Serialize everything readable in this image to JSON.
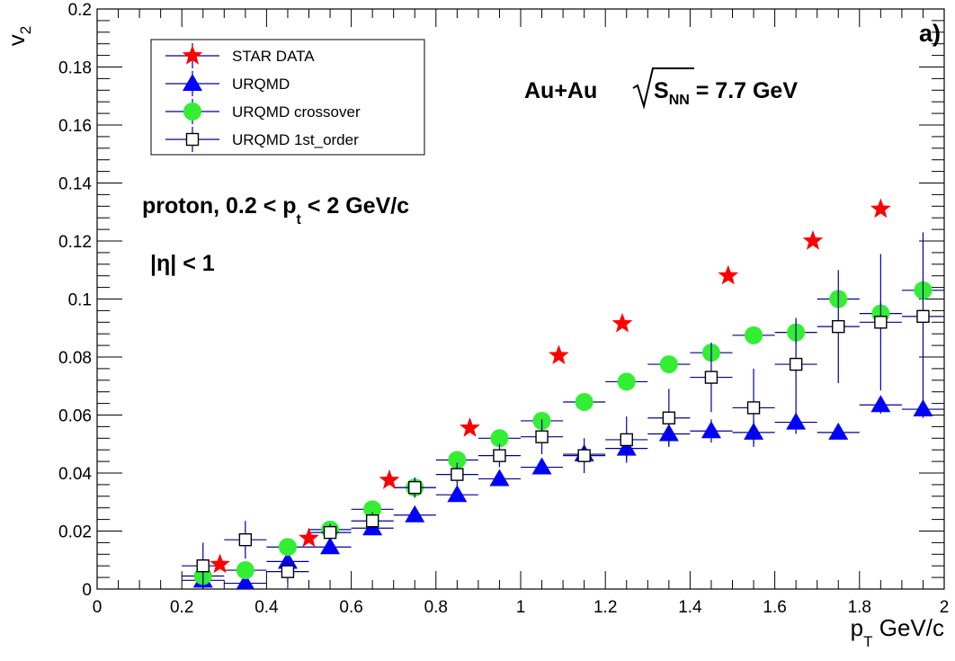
{
  "chart_data": {
    "type": "scatter",
    "title": "",
    "panel_label": "a)",
    "xlabel": {
      "main": "p",
      "sub": "T",
      "unit": " GeV/c"
    },
    "ylabel": {
      "main": "v",
      "sub": "2"
    },
    "xlim": [
      0,
      2
    ],
    "ylim": [
      0,
      0.2
    ],
    "x_ticks": [
      0,
      0.2,
      0.4,
      0.6,
      0.8,
      1,
      1.2,
      1.4,
      1.6,
      1.8,
      2
    ],
    "x_tick_labels": [
      "0",
      "0.2",
      "0.4",
      "0.6",
      "0.8",
      "1",
      "1.2",
      "1.4",
      "1.6",
      "1.8",
      "2"
    ],
    "y_ticks": [
      0,
      0.02,
      0.04,
      0.06,
      0.08,
      0.1,
      0.12,
      0.14,
      0.16,
      0.18,
      0.2
    ],
    "y_tick_labels": [
      "0",
      "0.02",
      "0.04",
      "0.06",
      "0.08",
      "0.1",
      "0.12",
      "0.14",
      "0.16",
      "0.18",
      "0.2"
    ],
    "grid": false,
    "legend_position": "top-left",
    "annotations": {
      "system": {
        "text": "Au+Au ",
        "root_label": "S",
        "root_sub": "NN",
        "suffix": " = 7.7 GeV"
      },
      "particle": {
        "pre": "proton, 0.2 < p",
        "sub": "t",
        "post": " < 2 GeV/c"
      },
      "eta": "|η| < 1"
    },
    "series": [
      {
        "name": "STAR DATA",
        "marker": "star",
        "color": "#ff0000",
        "points": [
          {
            "x": 0.29,
            "y": 0.0085
          },
          {
            "x": 0.5,
            "y": 0.0175
          },
          {
            "x": 0.69,
            "y": 0.0375
          },
          {
            "x": 0.88,
            "y": 0.0555
          },
          {
            "x": 1.09,
            "y": 0.0805
          },
          {
            "x": 1.24,
            "y": 0.0915
          },
          {
            "x": 1.49,
            "y": 0.108
          },
          {
            "x": 1.69,
            "y": 0.12
          },
          {
            "x": 1.85,
            "y": 0.131
          }
        ]
      },
      {
        "name": "URQMD",
        "marker": "triangle",
        "color": "#0000ff",
        "points": [
          {
            "x": 0.25,
            "y": 0.003,
            "xerr": 0.05,
            "yerr": 0.003
          },
          {
            "x": 0.35,
            "y": 0.002,
            "xerr": 0.05,
            "yerr": 0.003
          },
          {
            "x": 0.45,
            "y": 0.0095,
            "xerr": 0.05,
            "yerr": 0.003
          },
          {
            "x": 0.55,
            "y": 0.0145,
            "xerr": 0.05,
            "yerr": 0.002
          },
          {
            "x": 0.65,
            "y": 0.021,
            "xerr": 0.05,
            "yerr": 0.002
          },
          {
            "x": 0.75,
            "y": 0.0255,
            "xerr": 0.05,
            "yerr": 0.002
          },
          {
            "x": 0.85,
            "y": 0.0325,
            "xerr": 0.05,
            "yerr": 0.002
          },
          {
            "x": 0.95,
            "y": 0.038,
            "xerr": 0.05,
            "yerr": 0.002
          },
          {
            "x": 1.05,
            "y": 0.042,
            "xerr": 0.05,
            "yerr": 0.002
          },
          {
            "x": 1.15,
            "y": 0.0465,
            "xerr": 0.05,
            "yerr": 0.003
          },
          {
            "x": 1.25,
            "y": 0.0485,
            "xerr": 0.05,
            "yerr": 0.004
          },
          {
            "x": 1.35,
            "y": 0.0535,
            "xerr": 0.05,
            "yerr": 0.004
          },
          {
            "x": 1.45,
            "y": 0.0545,
            "xerr": 0.05,
            "yerr": 0.004
          },
          {
            "x": 1.55,
            "y": 0.054,
            "xerr": 0.05,
            "yerr": 0.004
          },
          {
            "x": 1.65,
            "y": 0.0575,
            "xerr": 0.05,
            "yerr": 0.004
          },
          {
            "x": 1.75,
            "y": 0.054,
            "xerr": 0.05,
            "yerr": 0.002
          },
          {
            "x": 1.85,
            "y": 0.0635,
            "xerr": 0.05,
            "yerr": 0.003
          },
          {
            "x": 1.95,
            "y": 0.062,
            "xerr": 0.05,
            "yerr": 0.003
          }
        ]
      },
      {
        "name": "URQMD crossover",
        "marker": "circle",
        "color": "#33ee33",
        "points": [
          {
            "x": 0.25,
            "y": 0.0045,
            "xerr": 0.05,
            "yerr": 0.003
          },
          {
            "x": 0.35,
            "y": 0.0065,
            "xerr": 0.05,
            "yerr": 0.003
          },
          {
            "x": 0.45,
            "y": 0.0145,
            "xerr": 0.05,
            "yerr": 0.002
          },
          {
            "x": 0.55,
            "y": 0.0205,
            "xerr": 0.05,
            "yerr": 0.002
          },
          {
            "x": 0.65,
            "y": 0.0275,
            "xerr": 0.05,
            "yerr": 0.002
          },
          {
            "x": 0.75,
            "y": 0.035,
            "xerr": 0.05,
            "yerr": 0.002
          },
          {
            "x": 0.85,
            "y": 0.0445,
            "xerr": 0.05,
            "yerr": 0.002
          },
          {
            "x": 0.95,
            "y": 0.052,
            "xerr": 0.05,
            "yerr": 0.002
          },
          {
            "x": 1.05,
            "y": 0.058,
            "xerr": 0.05,
            "yerr": 0.002
          },
          {
            "x": 1.15,
            "y": 0.0645,
            "xerr": 0.05,
            "yerr": 0.002
          },
          {
            "x": 1.25,
            "y": 0.0715,
            "xerr": 0.05,
            "yerr": 0.002
          },
          {
            "x": 1.35,
            "y": 0.0775,
            "xerr": 0.05,
            "yerr": 0.002
          },
          {
            "x": 1.45,
            "y": 0.0815,
            "xerr": 0.05,
            "yerr": 0.003
          },
          {
            "x": 1.55,
            "y": 0.0875,
            "xerr": 0.05,
            "yerr": 0.002
          },
          {
            "x": 1.65,
            "y": 0.0885,
            "xerr": 0.05,
            "yerr": 0.004
          },
          {
            "x": 1.75,
            "y": 0.1,
            "xerr": 0.05,
            "yerr": 0.003
          },
          {
            "x": 1.85,
            "y": 0.095,
            "xerr": 0.05,
            "yerr": 0.004
          },
          {
            "x": 1.95,
            "y": 0.103,
            "xerr": 0.05,
            "yerr": 0.004
          }
        ]
      },
      {
        "name": "URQMD 1st_order",
        "marker": "open-square",
        "color": "#000000",
        "error_color": "#000099",
        "points": [
          {
            "x": 0.25,
            "y": 0.008,
            "xerr": 0.05,
            "yerr": 0.008
          },
          {
            "x": 0.35,
            "y": 0.017,
            "xerr": 0.05,
            "yerr": 0.0065
          },
          {
            "x": 0.45,
            "y": 0.006,
            "xerr": 0.05,
            "yerr": 0.004
          },
          {
            "x": 0.55,
            "y": 0.0195,
            "xerr": 0.05,
            "yerr": 0.003
          },
          {
            "x": 0.65,
            "y": 0.0235,
            "xerr": 0.05,
            "yerr": 0.003
          },
          {
            "x": 0.75,
            "y": 0.035,
            "xerr": 0.05,
            "yerr": 0.0035
          },
          {
            "x": 0.85,
            "y": 0.0395,
            "xerr": 0.05,
            "yerr": 0.004
          },
          {
            "x": 0.95,
            "y": 0.046,
            "xerr": 0.05,
            "yerr": 0.004
          },
          {
            "x": 1.05,
            "y": 0.0525,
            "xerr": 0.05,
            "yerr": 0.006
          },
          {
            "x": 1.15,
            "y": 0.046,
            "xerr": 0.05,
            "yerr": 0.006
          },
          {
            "x": 1.25,
            "y": 0.0515,
            "xerr": 0.05,
            "yerr": 0.008
          },
          {
            "x": 1.35,
            "y": 0.059,
            "xerr": 0.05,
            "yerr": 0.01
          },
          {
            "x": 1.45,
            "y": 0.073,
            "xerr": 0.05,
            "yerr": 0.012
          },
          {
            "x": 1.55,
            "y": 0.0625,
            "xerr": 0.05,
            "yerr": 0.0135
          },
          {
            "x": 1.65,
            "y": 0.0775,
            "xerr": 0.05,
            "yerr": 0.016
          },
          {
            "x": 1.75,
            "y": 0.0905,
            "xerr": 0.05,
            "yerr": 0.0195
          },
          {
            "x": 1.85,
            "y": 0.092,
            "xerr": 0.05,
            "yerr": 0.0235
          },
          {
            "x": 1.95,
            "y": 0.094,
            "xerr": 0.05,
            "yerr": 0.029
          }
        ]
      }
    ]
  }
}
